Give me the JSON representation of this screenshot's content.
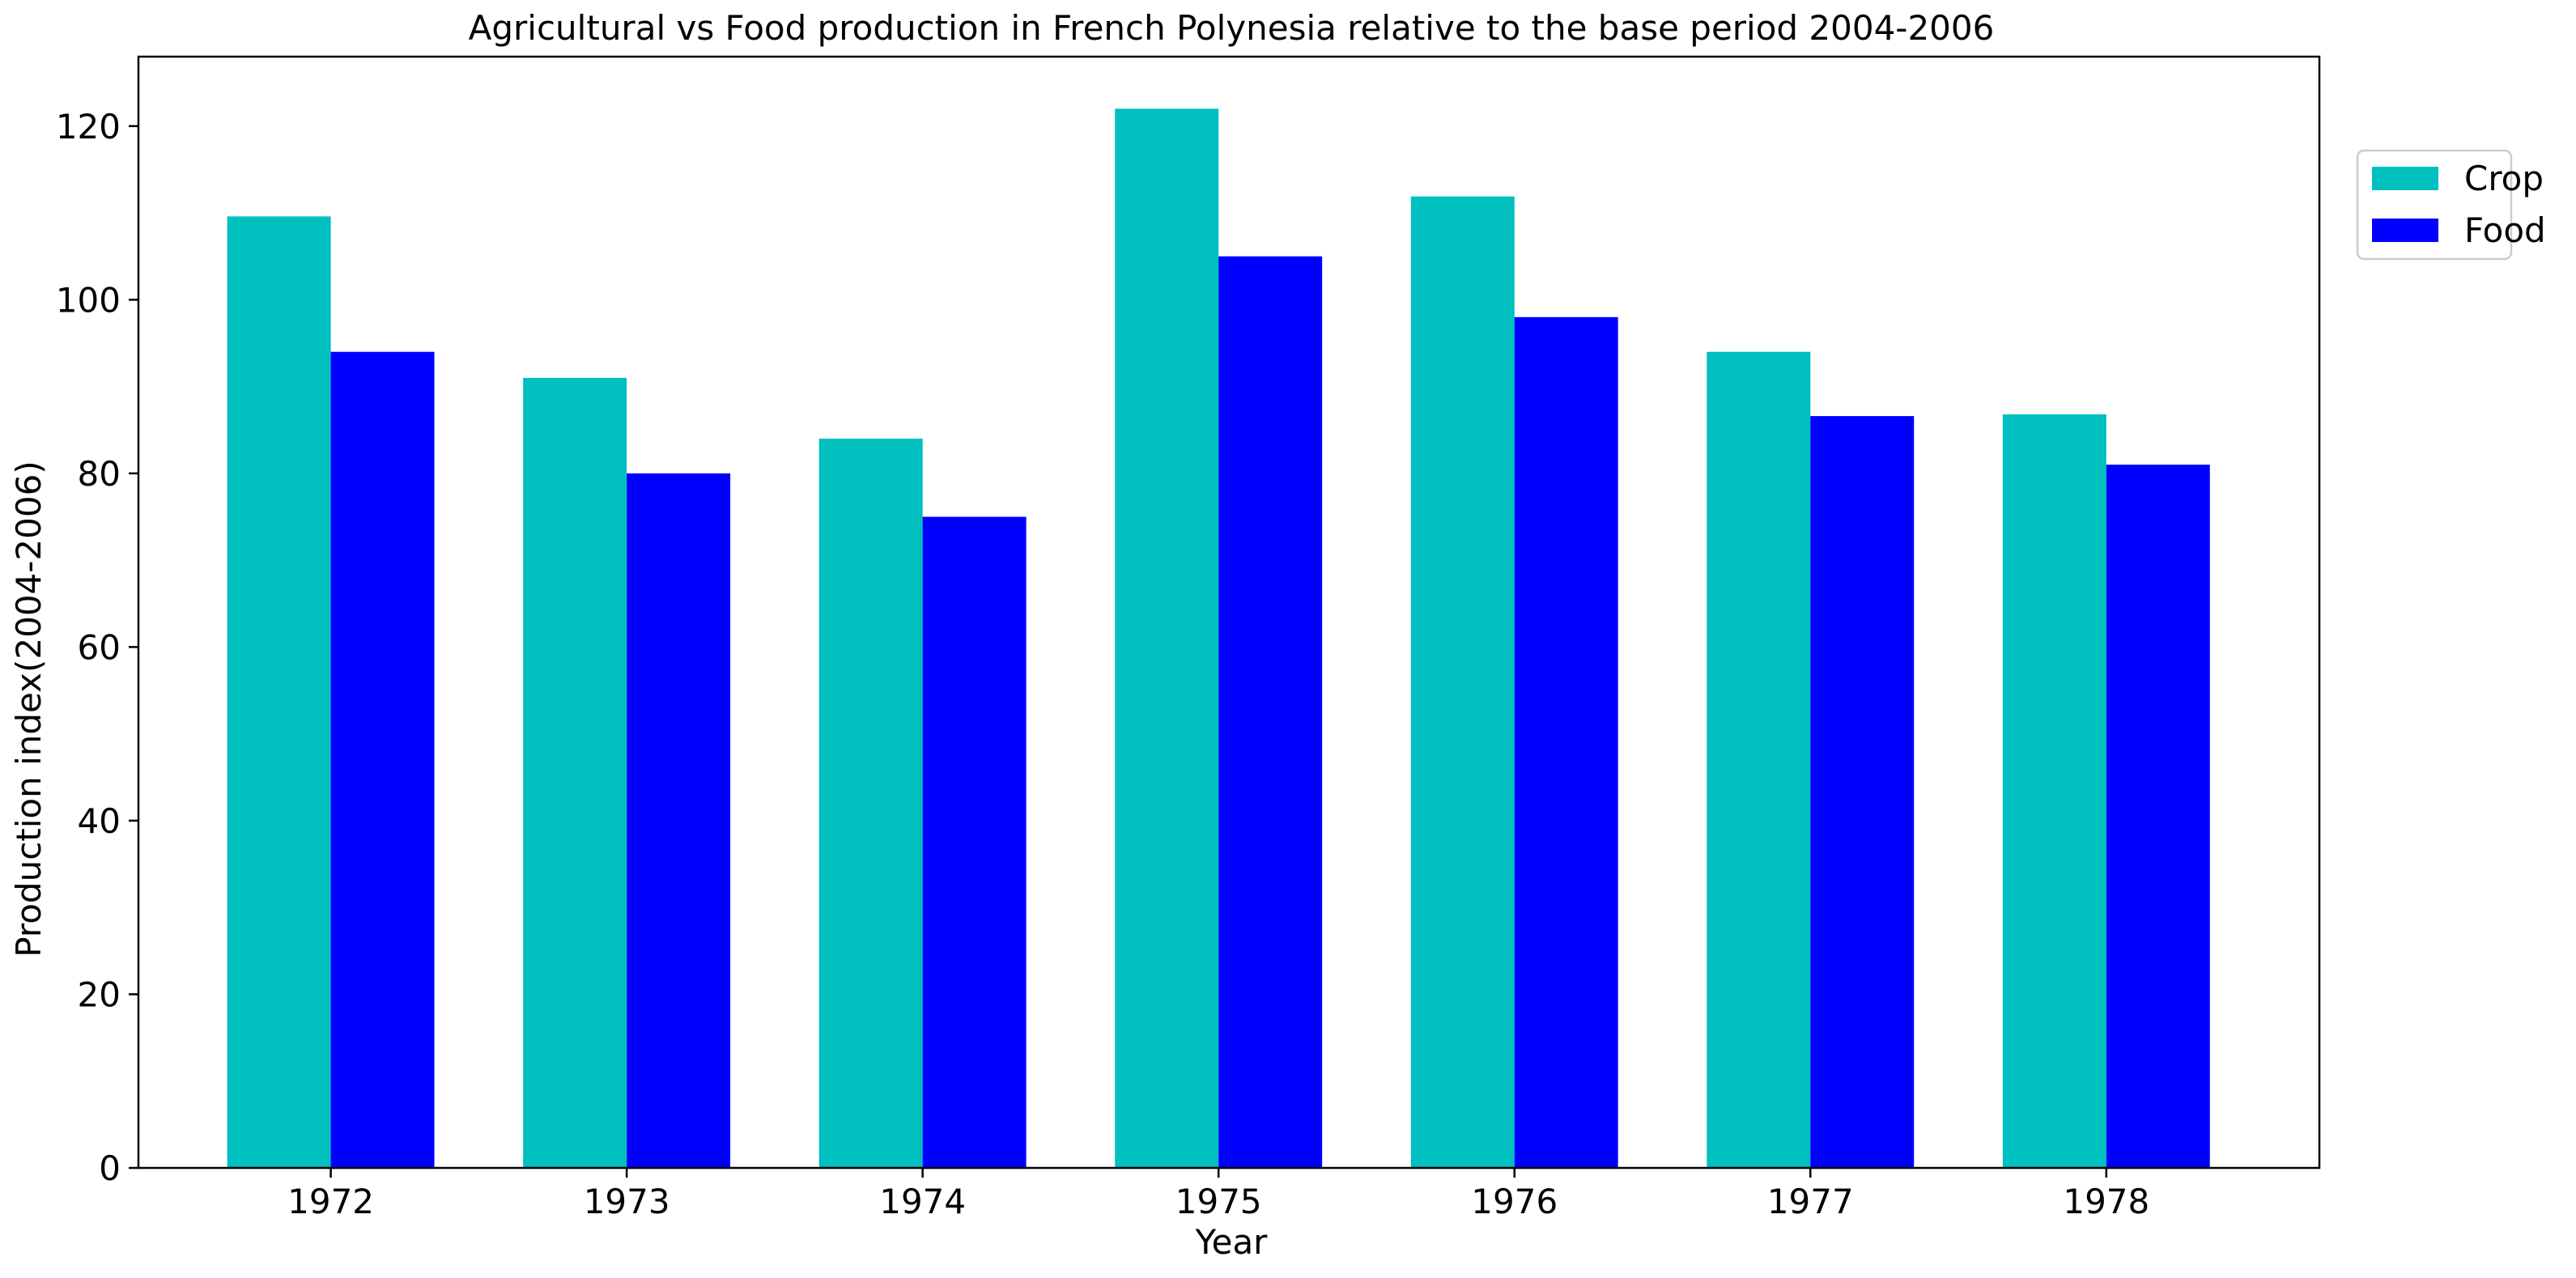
{
  "chart_data": {
    "type": "bar",
    "title": "Agricultural vs Food production in French Polynesia relative to the base period 2004-2006",
    "xlabel": "Year",
    "ylabel": "Production index(2004-2006)",
    "categories": [
      "1972",
      "1973",
      "1974",
      "1975",
      "1976",
      "1977",
      "1978"
    ],
    "series": [
      {
        "name": "Crop",
        "color": "#00bfbf",
        "values": [
          109.6,
          91.0,
          84.0,
          122.0,
          111.9,
          94.0,
          86.8
        ]
      },
      {
        "name": "Food",
        "color": "#0000ff",
        "values": [
          94.0,
          80.0,
          75.0,
          105.0,
          98.0,
          86.6,
          81.0
        ]
      }
    ],
    "ylim": [
      0,
      128
    ],
    "yticks": [
      0,
      20,
      40,
      60,
      80,
      100,
      120
    ],
    "grid": false,
    "legend_position": "upper-right outside"
  }
}
